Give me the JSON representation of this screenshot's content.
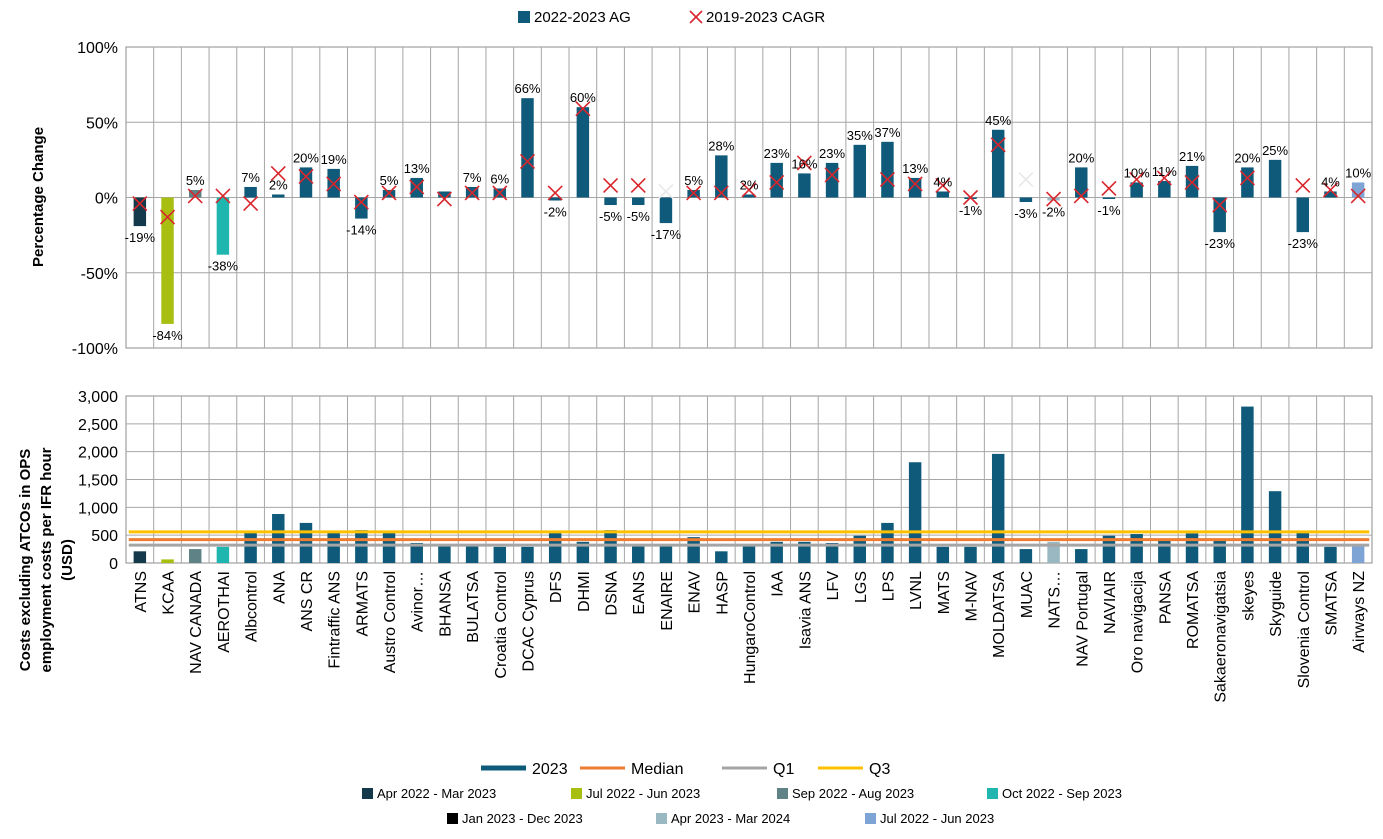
{
  "colors": {
    "bar_main": "#0f5a7a",
    "apr2022": "#14394a",
    "jul2022": "#a8bf12",
    "sep2022": "#5e8285",
    "oct2022": "#1fb6b0",
    "apr2023": "#9ab8c2",
    "jul2022b": "#7ea4d6",
    "median": "#ed7d31",
    "q1": "#a5a5a5",
    "q3": "#ffc000",
    "cagr_marker": "#d9262c"
  },
  "chart_data": [
    {
      "type": "bar",
      "ylabel": "Percentage Change",
      "ylim": [
        -100,
        100
      ],
      "yticks": [
        "100%",
        "50%",
        "0%",
        "-50%",
        "-100%"
      ],
      "grid": true,
      "legend": [
        "2022-2023 AG",
        "2019-2023 CAGR"
      ],
      "legend_position": "top",
      "categories": [
        "ATNS",
        "KCAA",
        "NAV CANADA",
        "AEROTHAI",
        "Albcontrol",
        "ANA",
        "ANS CR",
        "Fintraffic ANS",
        "ARMATS",
        "Austro Control",
        "Avinor…",
        "BHANSA",
        "BULATSA",
        "Croatia Control",
        "DCAC Cyprus",
        "DFS",
        "DHMI",
        "DSNA",
        "EANS",
        "ENAIRE",
        "ENAV",
        "HASP",
        "HungaroControl",
        "IAA",
        "Isavia ANS",
        "LFV",
        "LGS",
        "LPS",
        "LVNL",
        "MATS",
        "M-NAV",
        "MOLDATSA",
        "MUAC",
        "NATS…",
        "NAV Portugal",
        "NAVIAIR",
        "Oro navigacija",
        "PANSA",
        "ROMATSA",
        "Sakaeronavigatsia",
        "skeyes",
        "Skyguide",
        "Slovenia Control",
        "SMATSA",
        "Airways NZ"
      ],
      "series": [
        {
          "name": "2022-2023 AG",
          "values": [
            -19,
            -84,
            5,
            -38,
            7,
            2,
            20,
            19,
            -14,
            5,
            13,
            4,
            7,
            6,
            66,
            -2,
            60,
            -5,
            -5,
            -17,
            5,
            28,
            2,
            23,
            16,
            23,
            35,
            37,
            13,
            4,
            -1,
            45,
            -3,
            -2,
            20,
            -1,
            10,
            11,
            21,
            -23,
            20,
            25,
            -23,
            4,
            10
          ],
          "labels": [
            "-19%",
            "-84%",
            "5%",
            "-38%",
            "7%",
            "2%",
            "20%",
            "19%",
            "-14%",
            "5%",
            "13%",
            "",
            "7%",
            "6%",
            "66%",
            "-2%",
            "60%",
            "-5%",
            "-5%",
            "-17%",
            "5%",
            "28%",
            "2%",
            "23%",
            "16%",
            "23%",
            "35%",
            "37%",
            "13%",
            "4%",
            "-1%",
            "45%",
            "-3%",
            "-2%",
            "20%",
            "-1%",
            "10%",
            "11%",
            "21%",
            "-23%",
            "20%",
            "25%",
            "-23%",
            "4%",
            "10%"
          ]
        },
        {
          "name": "2019-2023 CAGR",
          "values": [
            -4,
            -13,
            1,
            1,
            -4,
            16,
            14,
            9,
            -3,
            3,
            7,
            -1,
            3,
            3,
            24,
            3,
            59,
            8,
            8,
            4,
            3,
            3,
            5,
            10,
            23,
            15,
            null,
            12,
            9,
            8,
            0,
            35,
            12,
            -1,
            1,
            6,
            12,
            13,
            10,
            -5,
            13,
            null,
            8,
            5,
            1
          ],
          "marker_colors": [
            "red",
            "red",
            "red",
            "red",
            "red",
            "red",
            "red",
            "red",
            "red",
            "red",
            "red",
            "red",
            "red",
            "red",
            "red",
            "red",
            "red",
            "red",
            "red",
            "light",
            "red",
            "red",
            "red",
            "red",
            "red",
            "red",
            "red",
            "red",
            "red",
            "red",
            "red",
            "red",
            "light",
            "red",
            "red",
            "red",
            "red",
            "red",
            "red",
            "red",
            "red",
            "red",
            "red",
            "red",
            "red"
          ]
        }
      ]
    },
    {
      "type": "bar",
      "ylabel": "Costs excluding ATCOs in OPS employment costs per IFR hour (USD)",
      "ylim": [
        0,
        3000
      ],
      "yticks": [
        "3,000",
        "2,500",
        "2,000",
        "1,500",
        "1,000",
        "500",
        "0"
      ],
      "grid": true,
      "series": [
        {
          "name": "2023",
          "values": [
            210,
            65,
            250,
            290,
            540,
            880,
            720,
            540,
            590,
            550,
            360,
            305,
            305,
            290,
            290,
            550,
            380,
            590,
            305,
            305,
            465,
            210,
            305,
            380,
            380,
            360,
            490,
            720,
            1810,
            290,
            290,
            1960,
            250,
            380,
            250,
            490,
            520,
            395,
            530,
            395,
            2810,
            1290,
            540,
            290,
            325
          ],
          "period": [
            "apr2022",
            "jul2022",
            "sep2022",
            "oct2022",
            "main",
            "main",
            "main",
            "main",
            "main",
            "main",
            "main",
            "main",
            "main",
            "main",
            "main",
            "main",
            "main",
            "main",
            "main",
            "main",
            "main",
            "main",
            "main",
            "main",
            "main",
            "main",
            "main",
            "main",
            "main",
            "main",
            "main",
            "main",
            "main",
            "apr2023",
            "main",
            "main",
            "main",
            "main",
            "main",
            "main",
            "main",
            "main",
            "main",
            "main",
            "jul2022b"
          ]
        }
      ],
      "reference_lines": [
        {
          "name": "Median",
          "value": 420
        },
        {
          "name": "Q1",
          "value": 320
        },
        {
          "name": "Q3",
          "value": 560
        }
      ]
    }
  ],
  "legend_bottom": {
    "lines": [
      "2023",
      "Median",
      "Q1",
      "Q3"
    ],
    "periods": [
      {
        "key": "apr2022",
        "label": "Apr 2022 - Mar 2023"
      },
      {
        "key": "jul2022",
        "label": "Jul 2022 - Jun 2023"
      },
      {
        "key": "sep2022",
        "label": "Sep 2022 - Aug 2023"
      },
      {
        "key": "oct2022",
        "label": "Oct 2022 - Sep 2023"
      },
      {
        "key": "main",
        "label": "Jan 2023 - Dec 2023"
      },
      {
        "key": "apr2023",
        "label": "Apr 2023 - Mar 2024"
      },
      {
        "key": "jul2022b",
        "label": "Jul 2022 - Jun 2023"
      }
    ]
  }
}
